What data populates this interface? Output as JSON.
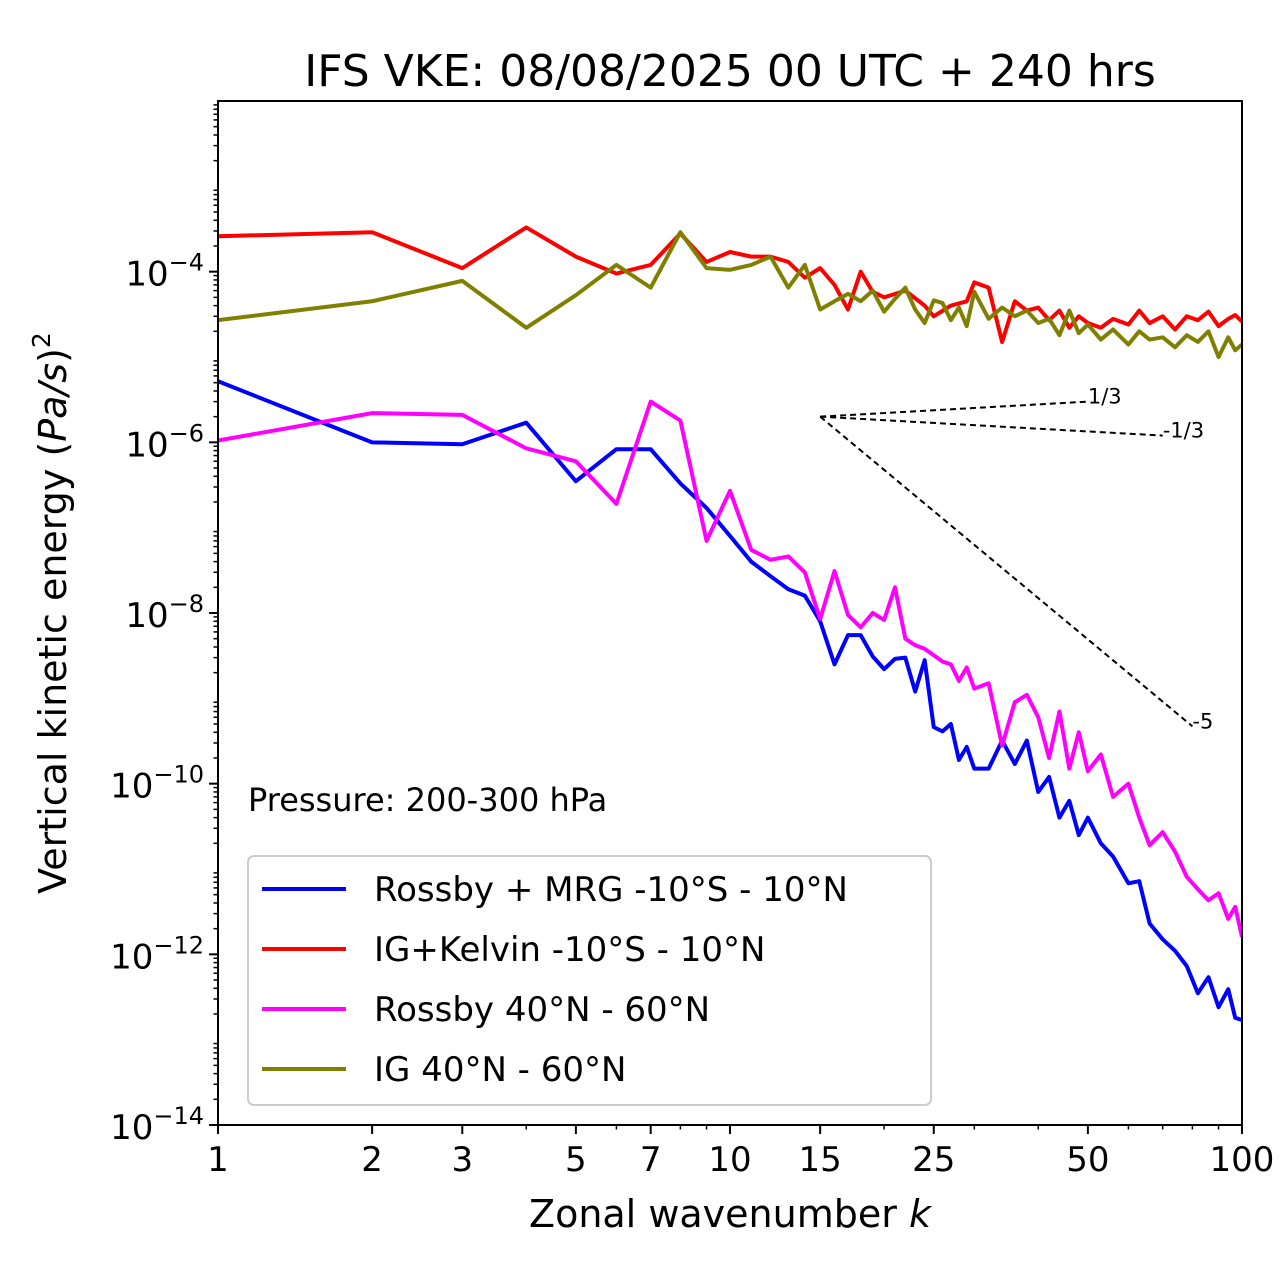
{
  "chart_data": {
    "type": "line",
    "title": "IFS VKE: 08/08/2025 00 UTC + 240 hrs",
    "xlabel": "Zonal wavenumber k",
    "xlabel_main": "Zonal wavenumber ",
    "xlabel_var": "k",
    "ylabel": "Vertical kinetic energy (Pa/s)^2",
    "ylabel_main": "Vertical kinetic energy (",
    "ylabel_var": "Pa/s",
    "ylabel_close": ")",
    "ylabel_exp": "2",
    "xscale": "log",
    "yscale": "log",
    "xlim": [
      1,
      100
    ],
    "ylim": [
      1e-14,
      0.01
    ],
    "x_ticks": [
      {
        "v": 1,
        "label": "1"
      },
      {
        "v": 2,
        "label": "2"
      },
      {
        "v": 3,
        "label": "3"
      },
      {
        "v": 5,
        "label": "5"
      },
      {
        "v": 7,
        "label": "7"
      },
      {
        "v": 10,
        "label": "10"
      },
      {
        "v": 15,
        "label": "15"
      },
      {
        "v": 25,
        "label": "25"
      },
      {
        "v": 50,
        "label": "50"
      },
      {
        "v": 100,
        "label": "100"
      }
    ],
    "y_ticks": [
      {
        "exp": -14,
        "base": "10",
        "sup": "−14"
      },
      {
        "exp": -12,
        "base": "10",
        "sup": "−12"
      },
      {
        "exp": -10,
        "base": "10",
        "sup": "−10"
      },
      {
        "exp": -8,
        "base": "10",
        "sup": "−8"
      },
      {
        "exp": -6,
        "base": "10",
        "sup": "−6"
      },
      {
        "exp": -4,
        "base": "10",
        "sup": "−4"
      }
    ],
    "annotation": "Pressure: 200-300 hPa",
    "legend_position": "lower-left",
    "reference_lines": [
      {
        "label": "1/3",
        "x": [
          15,
          50
        ],
        "y": [
          2e-06,
          3e-06
        ]
      },
      {
        "label": "-1/3",
        "x": [
          15,
          70
        ],
        "y": [
          2e-06,
          1.2e-06
        ]
      },
      {
        "label": "-5",
        "x": [
          15,
          80
        ],
        "y": [
          2e-06,
          4.7e-10
        ]
      }
    ],
    "series": [
      {
        "name": "Rossby + MRG -10°S - 10°N",
        "color": "#0000ff",
        "points": [
          [
            1,
            5.2e-06
          ],
          [
            2,
            1e-06
          ],
          [
            3,
            9.5e-07
          ],
          [
            4,
            1.7e-06
          ],
          [
            5,
            3.5e-07
          ],
          [
            6,
            8.3e-07
          ],
          [
            7,
            8.3e-07
          ],
          [
            8,
            3.3e-07
          ],
          [
            9,
            1.7e-07
          ],
          [
            10,
            8e-08
          ],
          [
            11,
            4e-08
          ],
          [
            12,
            2.7e-08
          ],
          [
            13,
            1.9e-08
          ],
          [
            14,
            1.6e-08
          ],
          [
            15,
            8e-09
          ],
          [
            16,
            2.5e-09
          ],
          [
            17,
            5.5e-09
          ],
          [
            18,
            5.5e-09
          ],
          [
            19,
            3.1e-09
          ],
          [
            20,
            2.2e-09
          ],
          [
            21,
            2.9e-09
          ],
          [
            22,
            3e-09
          ],
          [
            23,
            1.2e-09
          ],
          [
            24,
            2.8e-09
          ],
          [
            25,
            4.6e-10
          ],
          [
            26,
            4.1e-10
          ],
          [
            27,
            5e-10
          ],
          [
            28,
            1.9e-10
          ],
          [
            29,
            2.7e-10
          ],
          [
            30,
            1.5e-10
          ],
          [
            32,
            1.5e-10
          ],
          [
            34,
            3.2e-10
          ],
          [
            36,
            1.7e-10
          ],
          [
            38,
            3.2e-10
          ],
          [
            40,
            8e-11
          ],
          [
            42,
            1.2e-10
          ],
          [
            44,
            4e-11
          ],
          [
            46,
            6.3e-11
          ],
          [
            48,
            2.5e-11
          ],
          [
            50,
            4e-11
          ],
          [
            53,
            2e-11
          ],
          [
            56,
            1.4e-11
          ],
          [
            60,
            6.8e-12
          ],
          [
            63,
            7.2e-12
          ],
          [
            66,
            2.3e-12
          ],
          [
            70,
            1.5e-12
          ],
          [
            74,
            1.1e-12
          ],
          [
            78,
            7.3e-13
          ],
          [
            82,
            3.5e-13
          ],
          [
            86,
            5.4e-13
          ],
          [
            90,
            2.4e-13
          ],
          [
            94,
            3.9e-13
          ],
          [
            97,
            1.8e-13
          ],
          [
            100,
            1.7e-13
          ]
        ]
      },
      {
        "name": "IG+Kelvin -10°S - 10°N",
        "color": "#ff0000",
        "points": [
          [
            1,
            0.00026
          ],
          [
            2,
            0.00029
          ],
          [
            3,
            0.00011
          ],
          [
            4,
            0.00033
          ],
          [
            5,
            0.00015
          ],
          [
            6,
            9.5e-05
          ],
          [
            7,
            0.00012
          ],
          [
            8,
            0.00028
          ],
          [
            9,
            0.00013
          ],
          [
            10,
            0.00017
          ],
          [
            11,
            0.00015
          ],
          [
            12,
            0.00015
          ],
          [
            13,
            0.00013
          ],
          [
            14,
            8.5e-05
          ],
          [
            15,
            0.00011
          ],
          [
            16,
            7e-05
          ],
          [
            17,
            3.6e-05
          ],
          [
            18,
            0.0001
          ],
          [
            19,
            5.8e-05
          ],
          [
            20,
            5e-05
          ],
          [
            22,
            6e-05
          ],
          [
            24,
            4e-05
          ],
          [
            25,
            3e-05
          ],
          [
            27,
            4e-05
          ],
          [
            29,
            4.5e-05
          ],
          [
            30,
            7.5e-05
          ],
          [
            32,
            6.5e-05
          ],
          [
            34,
            1.5e-05
          ],
          [
            36,
            4.5e-05
          ],
          [
            38,
            3.5e-05
          ],
          [
            40,
            3.8e-05
          ],
          [
            42,
            2.7e-05
          ],
          [
            44,
            3.5e-05
          ],
          [
            46,
            2.2e-05
          ],
          [
            48,
            3e-05
          ],
          [
            50,
            2.5e-05
          ],
          [
            53,
            2.2e-05
          ],
          [
            56,
            2.8e-05
          ],
          [
            60,
            2.4e-05
          ],
          [
            63,
            3.5e-05
          ],
          [
            66,
            2.5e-05
          ],
          [
            70,
            3e-05
          ],
          [
            74,
            2.1e-05
          ],
          [
            78,
            3e-05
          ],
          [
            82,
            2.7e-05
          ],
          [
            86,
            3.4e-05
          ],
          [
            90,
            2.3e-05
          ],
          [
            94,
            2.8e-05
          ],
          [
            97,
            3.1e-05
          ],
          [
            100,
            2.6e-05
          ]
        ]
      },
      {
        "name": "Rossby 40°N - 60°N",
        "color": "#ff00ff",
        "points": [
          [
            1,
            1.05e-06
          ],
          [
            2,
            2.2e-06
          ],
          [
            3,
            2.1e-06
          ],
          [
            4,
            8.5e-07
          ],
          [
            5,
            6e-07
          ],
          [
            6,
            1.9e-07
          ],
          [
            7,
            3e-06
          ],
          [
            8,
            1.8e-06
          ],
          [
            9,
            7e-08
          ],
          [
            10,
            2.7e-07
          ],
          [
            11,
            5.5e-08
          ],
          [
            12,
            4.2e-08
          ],
          [
            13,
            4.6e-08
          ],
          [
            14,
            3e-08
          ],
          [
            15,
            8.5e-09
          ],
          [
            16,
            3.1e-08
          ],
          [
            17,
            9.5e-09
          ],
          [
            18,
            6.8e-09
          ],
          [
            19,
            1e-08
          ],
          [
            20,
            8.3e-09
          ],
          [
            21,
            2e-08
          ],
          [
            22,
            5e-09
          ],
          [
            23,
            4.2e-09
          ],
          [
            24,
            3.8e-09
          ],
          [
            25,
            3.2e-09
          ],
          [
            26,
            2.7e-09
          ],
          [
            27,
            2.5e-09
          ],
          [
            28,
            1.6e-09
          ],
          [
            29,
            2.3e-09
          ],
          [
            30,
            1.3e-09
          ],
          [
            32,
            1.5e-09
          ],
          [
            34,
            2.8e-10
          ],
          [
            36,
            9e-10
          ],
          [
            38,
            1.1e-09
          ],
          [
            40,
            6e-10
          ],
          [
            42,
            2e-10
          ],
          [
            44,
            7e-10
          ],
          [
            46,
            1.5e-10
          ],
          [
            48,
            4e-10
          ],
          [
            50,
            1.4e-10
          ],
          [
            53,
            2.2e-10
          ],
          [
            56,
            7e-11
          ],
          [
            60,
            1e-10
          ],
          [
            63,
            4e-11
          ],
          [
            66,
            1.9e-11
          ],
          [
            70,
            2.7e-11
          ],
          [
            74,
            1.6e-11
          ],
          [
            78,
            8.1e-12
          ],
          [
            82,
            5.8e-12
          ],
          [
            86,
            4.3e-12
          ],
          [
            90,
            5.2e-12
          ],
          [
            94,
            2.6e-12
          ],
          [
            97,
            3.6e-12
          ],
          [
            100,
            1.6e-12
          ]
        ]
      },
      {
        "name": "IG 40°N - 60°N",
        "color": "#808000",
        "points": [
          [
            1,
            2.7e-05
          ],
          [
            2,
            4.5e-05
          ],
          [
            3,
            7.8e-05
          ],
          [
            4,
            2.2e-05
          ],
          [
            5,
            5.3e-05
          ],
          [
            6,
            0.00012
          ],
          [
            7,
            6.5e-05
          ],
          [
            8,
            0.00029
          ],
          [
            9,
            0.00011
          ],
          [
            10,
            0.000105
          ],
          [
            11,
            0.00012
          ],
          [
            12,
            0.00015
          ],
          [
            13,
            6.5e-05
          ],
          [
            14,
            0.00012
          ],
          [
            15,
            3.6e-05
          ],
          [
            16,
            4.5e-05
          ],
          [
            17,
            5.5e-05
          ],
          [
            18,
            4.5e-05
          ],
          [
            19,
            6e-05
          ],
          [
            20,
            3.4e-05
          ],
          [
            21,
            4.8e-05
          ],
          [
            22,
            6.5e-05
          ],
          [
            23,
            3.6e-05
          ],
          [
            24,
            2.5e-05
          ],
          [
            25,
            4.6e-05
          ],
          [
            26,
            4.3e-05
          ],
          [
            27,
            2.7e-05
          ],
          [
            28,
            3.8e-05
          ],
          [
            29,
            2.3e-05
          ],
          [
            30,
            5.8e-05
          ],
          [
            32,
            2.8e-05
          ],
          [
            34,
            3.8e-05
          ],
          [
            36,
            3e-05
          ],
          [
            38,
            3.5e-05
          ],
          [
            40,
            2.5e-05
          ],
          [
            42,
            2.8e-05
          ],
          [
            44,
            1.8e-05
          ],
          [
            46,
            3.5e-05
          ],
          [
            48,
            1.9e-05
          ],
          [
            50,
            2.4e-05
          ],
          [
            53,
            1.6e-05
          ],
          [
            56,
            2.1e-05
          ],
          [
            60,
            1.4e-05
          ],
          [
            63,
            2e-05
          ],
          [
            66,
            1.6e-05
          ],
          [
            70,
            1.7e-05
          ],
          [
            74,
            1.3e-05
          ],
          [
            78,
            1.8e-05
          ],
          [
            82,
            1.5e-05
          ],
          [
            86,
            2e-05
          ],
          [
            90,
            1e-05
          ],
          [
            94,
            1.7e-05
          ],
          [
            97,
            1.2e-05
          ],
          [
            100,
            1.4e-05
          ]
        ]
      }
    ]
  }
}
